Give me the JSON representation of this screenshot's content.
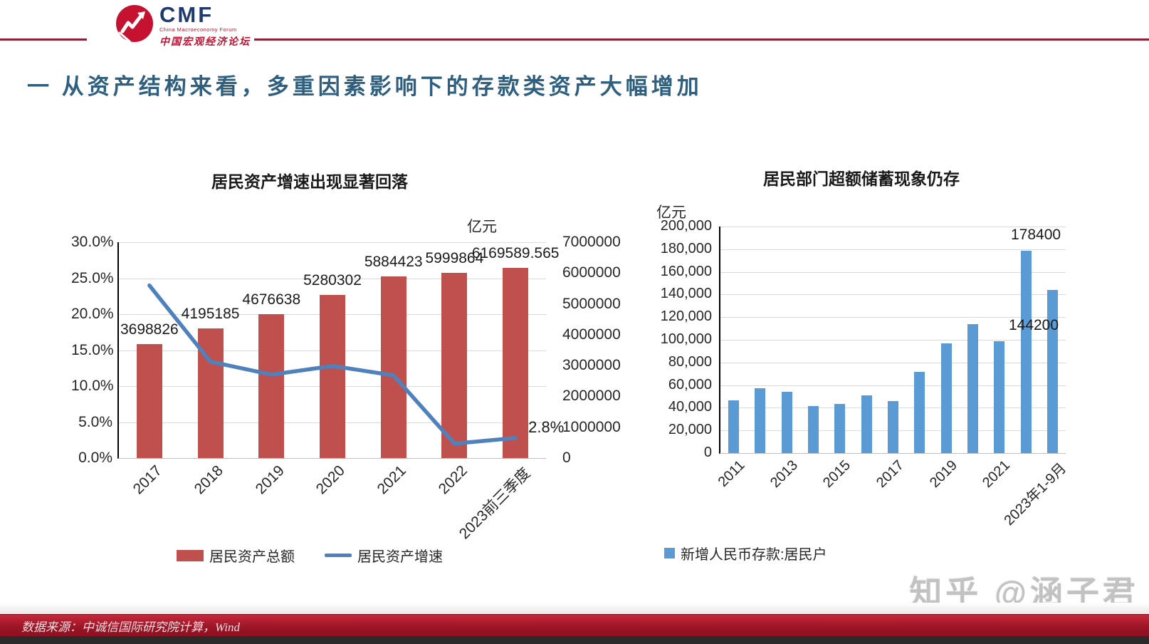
{
  "header": {
    "logo": {
      "acronym": "CMF",
      "subtitle_en": "China Macroeconomy Forum",
      "subtitle_zh": "中国宏观经济论坛"
    },
    "rule_color": "#8e2136"
  },
  "title": {
    "text": "一 从资产结构来看，多重因素影响下的存款类资产大幅增加",
    "color": "#2e5f7f"
  },
  "watermark": {
    "text": "知乎 @涵子君"
  },
  "footer": {
    "source": "数据来源：中诚信国际研究院计算，Wind"
  },
  "chart_data": [
    {
      "type": "combo-bar-line",
      "title": "居民资产增速出现显著回落",
      "unit_label": "亿元",
      "categories": [
        "2017",
        "2018",
        "2019",
        "2020",
        "2021",
        "2022",
        "2023前三季度"
      ],
      "bar_series": {
        "name": "居民资产总额",
        "color": "#C0504D",
        "axis": "right",
        "values": [
          3698826,
          4195185,
          4676638,
          5280302,
          5884423,
          5999864,
          6169589.565
        ],
        "labels": [
          "3698826",
          "4195185",
          "4676638",
          "5280302",
          "5884423",
          "5999864",
          "6169589.565"
        ]
      },
      "line_series": {
        "name": "居民资产增速",
        "color": "#4F81BD",
        "axis": "left",
        "values_pct": [
          24.0,
          13.4,
          11.6,
          12.8,
          11.5,
          2.0,
          2.8
        ],
        "end_label": "2.8%"
      },
      "left_axis": {
        "min": 0,
        "max": 30,
        "ticks": [
          "30.0%",
          "25.0%",
          "20.0%",
          "15.0%",
          "10.0%",
          "5.0%",
          "0.0%"
        ]
      },
      "right_axis": {
        "min": 0,
        "max": 7000000,
        "ticks": [
          "7000000",
          "6000000",
          "5000000",
          "4000000",
          "3000000",
          "2000000",
          "1000000",
          "0"
        ]
      },
      "grid": true,
      "legend_position": "bottom"
    },
    {
      "type": "bar",
      "title": "居民部门超额储蓄现象仍存",
      "unit_label": "亿元",
      "categories": [
        "2011",
        "2012",
        "2013",
        "2014",
        "2015",
        "2016",
        "2017",
        "2018",
        "2019",
        "2020",
        "2021",
        "2022",
        "2023年1-9月"
      ],
      "x_tick_indices": [
        0,
        2,
        4,
        6,
        8,
        10,
        12
      ],
      "series": [
        {
          "name": "新增人民币存款:居民户",
          "color": "#5B9BD5",
          "values": [
            46600,
            57100,
            54300,
            41400,
            43600,
            51100,
            46200,
            72000,
            96900,
            113900,
            99000,
            178400,
            144200
          ]
        }
      ],
      "data_labels": [
        {
          "index": 11,
          "text": "178400",
          "placement": "above"
        },
        {
          "index": 12,
          "text": "144200",
          "placement": "custom",
          "x": 440,
          "y": 139
        }
      ],
      "y_axis": {
        "min": 0,
        "max": 200000,
        "ticks": [
          "200,000",
          "180,000",
          "160,000",
          "140,000",
          "120,000",
          "100,000",
          "80,000",
          "60,000",
          "40,000",
          "20,000",
          "0"
        ]
      },
      "grid": true,
      "legend_position": "bottom"
    }
  ]
}
